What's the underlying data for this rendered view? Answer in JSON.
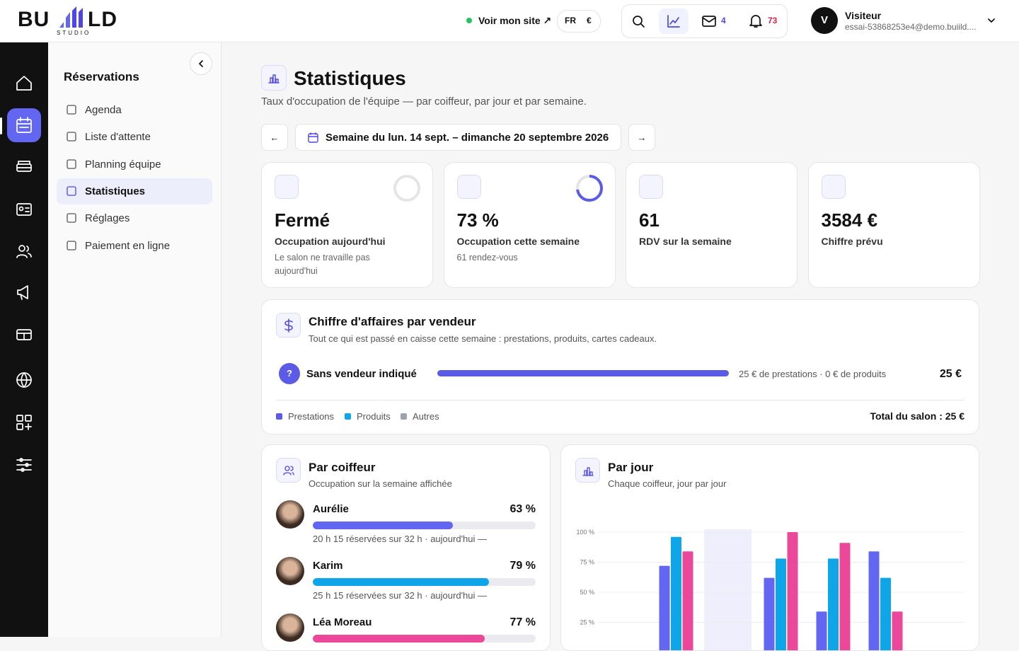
{
  "header": {
    "logo": {
      "left": "BU",
      "right": "LD",
      "sub": "STUDIO"
    },
    "site_link": "Voir mon site ↗",
    "language": "FR",
    "currency": "€",
    "messages": "4",
    "notifications": "73",
    "user": {
      "avatar": "V",
      "name": "Visiteur",
      "email": "essai-53868253e4@demo.buiild...."
    }
  },
  "sidebar": {
    "title": "Réservations",
    "items": [
      "Agenda",
      "Liste d'attente",
      "Planning équipe",
      "Statistiques",
      "Réglages",
      "Paiement en ligne"
    ]
  },
  "page": {
    "title": "Statistiques",
    "subtitle": "Taux d'occupation de l'équipe — par coiffeur, par jour et par semaine.",
    "week": "Semaine du lun. 14 sept. – dimanche 20 septembre 2026",
    "prev": "←",
    "next": "→"
  },
  "kpis": [
    {
      "value": "Fermé",
      "label": "Occupation aujourd'hui",
      "note": "Le salon ne travaille pas aujourd'hui"
    },
    {
      "value": "73 %",
      "progress": 73,
      "label": "Occupation cette semaine",
      "note": "61 rendez-vous"
    },
    {
      "value": "61",
      "label": "RDV sur la semaine"
    },
    {
      "value": "3584 €",
      "label": "Chiffre prévu"
    }
  ],
  "revenue": {
    "title": "Chiffre d'affaires par vendeur",
    "subtitle": "Tout ce qui est passé en caisse cette semaine : prestations, produits, cartes cadeaux.",
    "rows": [
      {
        "initial": "?",
        "name": "Sans vendeur indiqué",
        "detail": "25 € de prestations · 0 € de produits",
        "total": "25 €"
      }
    ],
    "legend": [
      "Prestations",
      "Produits",
      "Autres"
    ],
    "total": "Total du salon : 25 €"
  },
  "staff_card": {
    "title": "Par coiffeur",
    "subtitle": "Occupation sur la semaine affichée",
    "staff": [
      {
        "name": "Aurélie",
        "pct": 63,
        "pct_label": "63 %",
        "color": "#6366f1",
        "detail": "20 h 15 réservées sur 32 h · aujourd'hui —"
      },
      {
        "name": "Karim",
        "pct": 79,
        "pct_label": "79 %",
        "color": "#0ea5e9",
        "detail": "25 h 15 réservées sur 32 h · aujourd'hui —"
      },
      {
        "name": "Léa Moreau",
        "pct": 77,
        "pct_label": "77 %",
        "color": "#ec4899"
      }
    ]
  },
  "day_card": {
    "title": "Par jour",
    "subtitle": "Chaque coiffeur, jour par jour"
  },
  "chart_data": {
    "type": "bar",
    "categories": [
      null,
      null,
      null,
      null,
      null,
      null,
      null
    ],
    "series": [
      {
        "color": "#6366f1",
        "values": [
          null,
          72,
          null,
          62,
          34,
          84,
          null
        ]
      },
      {
        "color": "#0ea5e9",
        "values": [
          null,
          96,
          null,
          78,
          78,
          62,
          null
        ]
      },
      {
        "color": "#ec4899",
        "values": [
          null,
          84,
          null,
          100,
          91,
          34,
          null
        ]
      }
    ],
    "ylim": [
      0,
      100
    ],
    "yticks": [
      {
        "value": 100,
        "label": "100 %"
      },
      {
        "value": 75,
        "label": "75 %"
      },
      {
        "value": 50,
        "label": "50 %"
      },
      {
        "value": 25,
        "label": "25 %"
      }
    ],
    "grid": true
  }
}
